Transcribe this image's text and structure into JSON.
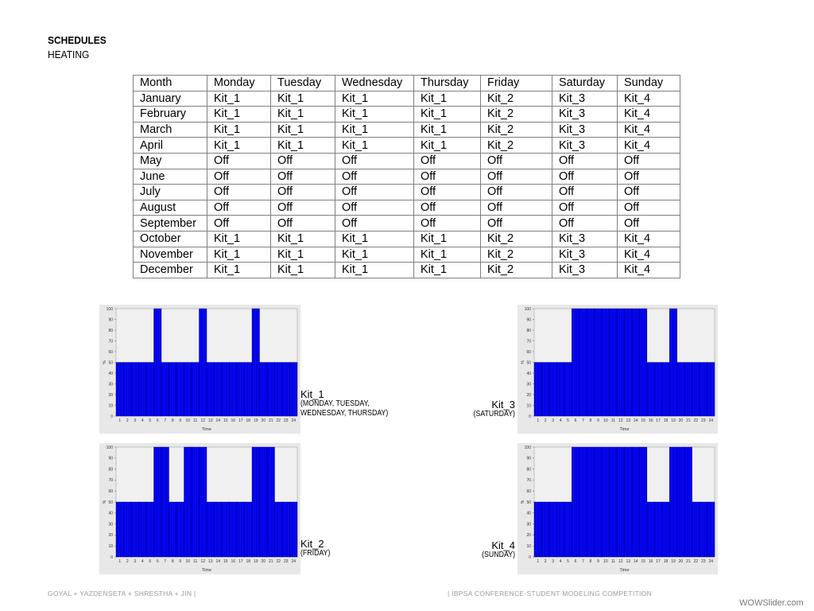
{
  "header": {
    "title": "SCHEDULES",
    "subtitle": "HEATING"
  },
  "table": {
    "headers": [
      "Month",
      "Monday",
      "Tuesday",
      "Wednesday",
      "Thursday",
      "Friday",
      "Saturday",
      "Sunday"
    ],
    "rows": [
      [
        "January",
        "Kit_1",
        "Kit_1",
        "Kit_1",
        "Kit_1",
        "Kit_2",
        "Kit_3",
        "Kit_4"
      ],
      [
        "February",
        "Kit_1",
        "Kit_1",
        "Kit_1",
        "Kit_1",
        "Kit_2",
        "Kit_3",
        "Kit_4"
      ],
      [
        "March",
        "Kit_1",
        "Kit_1",
        "Kit_1",
        "Kit_1",
        "Kit_2",
        "Kit_3",
        "Kit_4"
      ],
      [
        "April",
        "Kit_1",
        "Kit_1",
        "Kit_1",
        "Kit_1",
        "Kit_2",
        "Kit_3",
        "Kit_4"
      ],
      [
        "May",
        "Off",
        "Off",
        "Off",
        "Off",
        "Off",
        "Off",
        "Off"
      ],
      [
        "June",
        "Off",
        "Off",
        "Off",
        "Off",
        "Off",
        "Off",
        "Off"
      ],
      [
        "July",
        "Off",
        "Off",
        "Off",
        "Off",
        "Off",
        "Off",
        "Off"
      ],
      [
        "August",
        "Off",
        "Off",
        "Off",
        "Off",
        "Off",
        "Off",
        "Off"
      ],
      [
        "September",
        "Off",
        "Off",
        "Off",
        "Off",
        "Off",
        "Off",
        "Off"
      ],
      [
        "October",
        "Kit_1",
        "Kit_1",
        "Kit_1",
        "Kit_1",
        "Kit_2",
        "Kit_3",
        "Kit_4"
      ],
      [
        "November",
        "Kit_1",
        "Kit_1",
        "Kit_1",
        "Kit_1",
        "Kit_2",
        "Kit_3",
        "Kit_4"
      ],
      [
        "December",
        "Kit_1",
        "Kit_1",
        "Kit_1",
        "Kit_1",
        "Kit_2",
        "Kit_3",
        "Kit_4"
      ]
    ]
  },
  "kits": [
    {
      "name": "Kit_1",
      "days": "(MONDAY, TUESDAY,\nWEDNESDAY, THURSDAY)"
    },
    {
      "name": "Kit_2",
      "days": "(FRIDAY)"
    },
    {
      "name": "Kit_3",
      "days": "(SATURDAY)"
    },
    {
      "name": "Kit_4",
      "days": "(SUNDAY)"
    }
  ],
  "chart_data": [
    {
      "type": "bar",
      "kit": "Kit_1",
      "xlabel": "Time",
      "ylabel": "%",
      "ylim": [
        0,
        100
      ],
      "yticks": [
        0,
        10,
        20,
        30,
        40,
        50,
        60,
        70,
        80,
        90,
        100
      ],
      "categories": [
        "1",
        "2",
        "3",
        "4",
        "5",
        "6",
        "7",
        "8",
        "9",
        "10",
        "11",
        "12",
        "13",
        "14",
        "15",
        "16",
        "17",
        "18",
        "19",
        "20",
        "21",
        "22",
        "23",
        "24"
      ],
      "values": [
        50,
        50,
        50,
        50,
        50,
        100,
        50,
        50,
        50,
        50,
        50,
        100,
        50,
        50,
        50,
        50,
        50,
        50,
        100,
        50,
        50,
        50,
        50,
        50
      ],
      "bar_color": "#0000e6",
      "background": "#f0f0f0"
    },
    {
      "type": "bar",
      "kit": "Kit_2",
      "xlabel": "Time",
      "ylabel": "%",
      "ylim": [
        0,
        100
      ],
      "yticks": [
        0,
        10,
        20,
        30,
        40,
        50,
        60,
        70,
        80,
        90,
        100
      ],
      "categories": [
        "1",
        "2",
        "3",
        "4",
        "5",
        "6",
        "7",
        "8",
        "9",
        "10",
        "11",
        "12",
        "13",
        "14",
        "15",
        "16",
        "17",
        "18",
        "19",
        "20",
        "21",
        "22",
        "23",
        "24"
      ],
      "values": [
        50,
        50,
        50,
        50,
        50,
        100,
        100,
        50,
        50,
        100,
        100,
        100,
        50,
        50,
        50,
        50,
        50,
        50,
        100,
        100,
        100,
        50,
        50,
        50
      ],
      "bar_color": "#0000e6",
      "background": "#f0f0f0"
    },
    {
      "type": "bar",
      "kit": "Kit_3",
      "xlabel": "Time",
      "ylabel": "%",
      "ylim": [
        0,
        100
      ],
      "yticks": [
        0,
        10,
        20,
        30,
        40,
        50,
        60,
        70,
        80,
        90,
        100
      ],
      "categories": [
        "1",
        "2",
        "3",
        "4",
        "5",
        "6",
        "7",
        "8",
        "9",
        "10",
        "11",
        "12",
        "13",
        "14",
        "15",
        "16",
        "17",
        "18",
        "19",
        "20",
        "21",
        "22",
        "23",
        "24"
      ],
      "values": [
        50,
        50,
        50,
        50,
        50,
        100,
        100,
        100,
        100,
        100,
        100,
        100,
        100,
        100,
        100,
        50,
        50,
        50,
        100,
        50,
        50,
        50,
        50,
        50
      ],
      "bar_color": "#0000e6",
      "background": "#f0f0f0"
    },
    {
      "type": "bar",
      "kit": "Kit_4",
      "xlabel": "Time",
      "ylabel": "%",
      "ylim": [
        0,
        100
      ],
      "yticks": [
        0,
        10,
        20,
        30,
        40,
        50,
        60,
        70,
        80,
        90,
        100
      ],
      "categories": [
        "1",
        "2",
        "3",
        "4",
        "5",
        "6",
        "7",
        "8",
        "9",
        "10",
        "11",
        "12",
        "13",
        "14",
        "15",
        "16",
        "17",
        "18",
        "19",
        "20",
        "21",
        "22",
        "23",
        "24"
      ],
      "values": [
        50,
        50,
        50,
        50,
        50,
        100,
        100,
        100,
        100,
        100,
        100,
        100,
        100,
        100,
        100,
        50,
        50,
        50,
        100,
        100,
        100,
        50,
        50,
        50
      ],
      "bar_color": "#0000e6",
      "background": "#f0f0f0"
    }
  ],
  "footer": {
    "left": "GOYAL + YAZDENSETA + SHRESTHA + JIN |",
    "right": "| IBPSA CONFERENCE-STUDENT MODELING COMPETITION",
    "watermark": "WOWSlider.com"
  }
}
